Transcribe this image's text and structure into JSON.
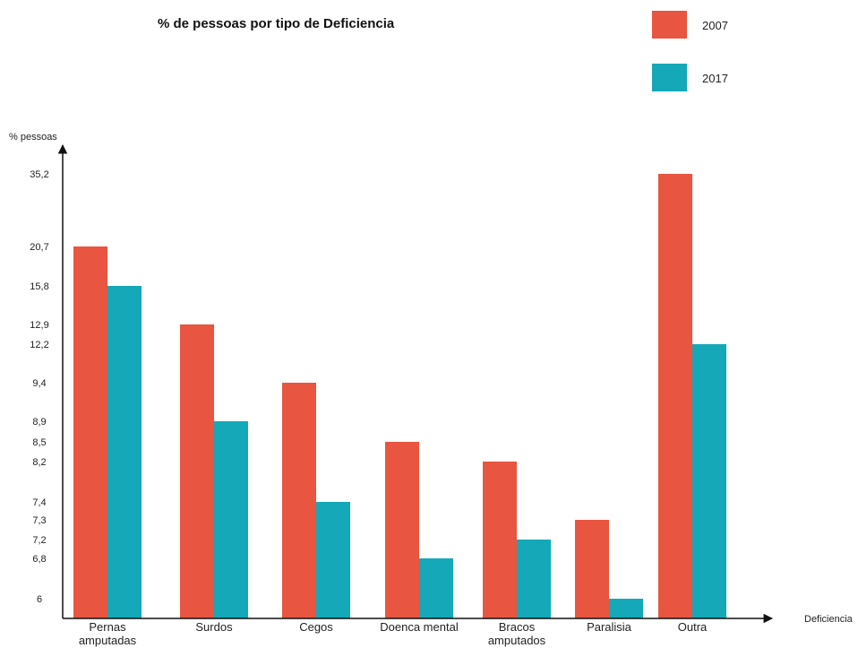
{
  "chart_data": {
    "type": "bar",
    "title": "% de pessoas por tipo de Deficiencia",
    "xlabel": "Deficiencia",
    "ylabel": "% pessoas",
    "categories": [
      [
        "Pernas",
        "amputadas"
      ],
      [
        "Surdos"
      ],
      [
        "Cegos"
      ],
      [
        "Doenca mental"
      ],
      [
        "Bracos",
        "amputados"
      ],
      [
        "Paralisia"
      ],
      [
        "Outra"
      ]
    ],
    "series": [
      {
        "name": "2007",
        "color": "#E85540",
        "values": [
          20.7,
          12.9,
          9.4,
          8.5,
          8.2,
          7.3,
          35.2
        ]
      },
      {
        "name": "2017",
        "color": "#14A8B8",
        "values": [
          15.8,
          8.9,
          7.4,
          6.8,
          7.2,
          6.0,
          12.2
        ]
      }
    ],
    "y_ticks": [
      "6",
      "6,8",
      "7,2",
      "7,3",
      "7,4",
      "8,2",
      "8,5",
      "8,9",
      "9,4",
      "12,2",
      "12,9",
      "15,8",
      "20,7",
      "35,2"
    ],
    "y_tick_values": [
      6,
      6.8,
      7.2,
      7.3,
      7.4,
      8.2,
      8.5,
      8.9,
      9.4,
      12.2,
      12.9,
      15.8,
      20.7,
      35.2
    ],
    "y_scale": "non-linear (tick positions not proportional to values)",
    "legend_position": "top-right",
    "grid": false
  }
}
